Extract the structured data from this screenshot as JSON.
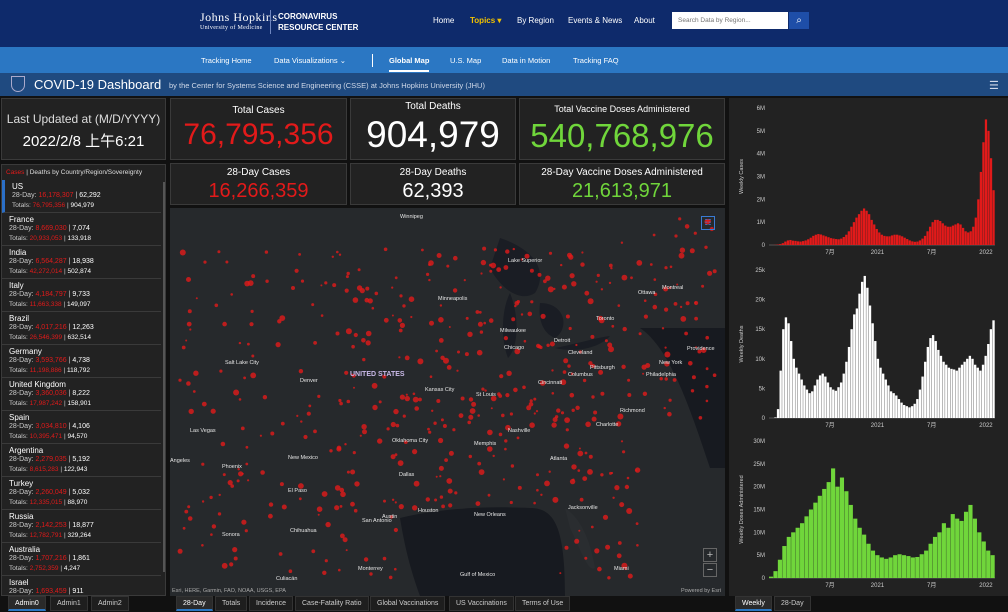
{
  "header": {
    "logo_top": "Johns Hopkins",
    "logo_bottom": "University of Medicine",
    "logo_title_1": "CORONAVIRUS",
    "logo_title_2": "RESOURCE CENTER",
    "nav": [
      "Home",
      "Topics ▾",
      "By Region",
      "Events & News",
      "About"
    ],
    "search_placeholder": "Search Data by Region..."
  },
  "subnav": [
    "Tracking Home",
    "Data Visualizations ⌄",
    "Global Map",
    "U.S. Map",
    "Data in Motion",
    "Tracking FAQ"
  ],
  "dashboard": {
    "title": "COVID-19 Dashboard",
    "subtitle": "by the Center for Systems Science and Engineering (CSSE) at Johns Hopkins University (JHU)"
  },
  "updated": {
    "label": "Last Updated at (M/D/YYYY)",
    "value": "2022/2/8 上午6:21"
  },
  "totals": {
    "cases_label": "Total Cases",
    "cases": "76,795,356",
    "deaths_label": "Total Deaths",
    "deaths": "904,979",
    "vaccine_label": "Total Vaccine Doses Administered",
    "vaccine": "540,768,976",
    "cases28_label": "28-Day Cases",
    "cases28": "16,266,359",
    "deaths28_label": "28-Day Deaths",
    "deaths28": "62,393",
    "vaccine28_label": "28-Day Vaccine Doses Administered",
    "vaccine28": "21,613,971"
  },
  "list": {
    "head_cases": "Cases",
    "head_rest": " | Deaths by Country/Region/Sovereignty",
    "rows": [
      {
        "name": "US",
        "d28c": "16,178,307",
        "d28d": "62,292",
        "tc": "76,795,356",
        "td": "904,979"
      },
      {
        "name": "France",
        "d28c": "8,669,030",
        "d28d": "7,074",
        "tc": "20,933,053",
        "td": "133,918"
      },
      {
        "name": "India",
        "d28c": "6,564,287",
        "d28d": "18,938",
        "tc": "42,272,014",
        "td": "502,874"
      },
      {
        "name": "Italy",
        "d28c": "4,184,797",
        "d28d": "9,733",
        "tc": "11,663,338",
        "td": "149,097"
      },
      {
        "name": "Brazil",
        "d28c": "4,017,216",
        "d28d": "12,263",
        "tc": "26,546,399",
        "td": "632,514"
      },
      {
        "name": "Germany",
        "d28c": "3,593,766",
        "d28d": "4,738",
        "tc": "11,198,886",
        "td": "118,792"
      },
      {
        "name": "United Kingdom",
        "d28c": "3,360,036",
        "d28d": "8,222",
        "tc": "17,987,242",
        "td": "158,901"
      },
      {
        "name": "Spain",
        "d28c": "3,034,810",
        "d28d": "4,106",
        "tc": "10,395,471",
        "td": "94,570"
      },
      {
        "name": "Argentina",
        "d28c": "2,279,035",
        "d28d": "5,192",
        "tc": "8,615,283",
        "td": "122,943"
      },
      {
        "name": "Turkey",
        "d28c": "2,260,049",
        "d28d": "5,032",
        "tc": "12,335,015",
        "td": "88,970"
      },
      {
        "name": "Russia",
        "d28c": "2,142,253",
        "d28d": "18,877",
        "tc": "12,782,791",
        "td": "329,264"
      },
      {
        "name": "Australia",
        "d28c": "1,707,216",
        "d28d": "1,861",
        "tc": "2,752,359",
        "td": "4,247"
      },
      {
        "name": "Israel",
        "d28c": "1,693,459",
        "d28d": "911",
        "tc": "",
        "td": ""
      }
    ],
    "l_28": "28-Day: ",
    "l_tot": "Totals: "
  },
  "map": {
    "labels": [
      "Winnipeg",
      "Lake Superior",
      "Ottawa",
      "Montreal",
      "Toronto",
      "Minneapolis",
      "Milwaukee",
      "Detroit",
      "Chicago",
      "Cleveland",
      "Pittsburgh",
      "New York",
      "Philadelphia",
      "Providence",
      "Salt Lake City",
      "Denver",
      "UNITED STATES",
      "Kansas City",
      "St Louis",
      "Columbus",
      "Cincinnati",
      "Richmond",
      "Las Vegas",
      "Oklahoma City",
      "Nashville",
      "Charlotte",
      "Phoenix",
      "Memphis",
      "Atlanta",
      "New Mexico",
      "Dallas",
      "El Paso",
      "Chihuahua",
      "Austin",
      "San Antonio",
      "Houston",
      "New Orleans",
      "Jacksonville",
      "Monterrey",
      "Gulf of Mexico",
      "Miami",
      "Sonora",
      "Culiacán",
      "Angeles"
    ],
    "attribution": "Esri, HERE, Garmin, FAO, NOAA, USGS, EPA",
    "powered": "Powered by Esri"
  },
  "bottom_tabs": {
    "left": [
      "Admin0",
      "Admin1",
      "Admin2"
    ],
    "mid": [
      "28-Day",
      "Totals",
      "Incidence",
      "Case-Fatality Ratio",
      "Global Vaccinations",
      "US Vaccinations",
      "Terms of Use"
    ],
    "right": [
      "Weekly",
      "28-Day"
    ]
  },
  "colors": {
    "cases": "#e21a1a",
    "deaths": "#ffffff",
    "vaccine": "#70d63b",
    "accent": "#2b77c3"
  },
  "chart_data": [
    {
      "type": "bar",
      "ylabel": "Weekly Cases",
      "yticks": [
        "0",
        "1M",
        "2M",
        "3M",
        "4M",
        "5M",
        "6M"
      ],
      "ylim": [
        0,
        6000000
      ],
      "xticks": [
        "7月",
        "2021",
        "7月",
        "2022"
      ],
      "values": [
        0,
        2000,
        8000,
        20000,
        40000,
        80000,
        150000,
        200000,
        220000,
        190000,
        180000,
        160000,
        150000,
        170000,
        200000,
        250000,
        320000,
        400000,
        450000,
        480000,
        460000,
        420000,
        380000,
        340000,
        300000,
        280000,
        260000,
        250000,
        280000,
        350000,
        450000,
        600000,
        800000,
        1000000,
        1200000,
        1350000,
        1500000,
        1600000,
        1500000,
        1350000,
        1100000,
        900000,
        700000,
        550000,
        450000,
        400000,
        380000,
        380000,
        420000,
        450000,
        450000,
        420000,
        380000,
        320000,
        260000,
        200000,
        160000,
        140000,
        150000,
        200000,
        280000,
        400000,
        600000,
        800000,
        1000000,
        1100000,
        1100000,
        1050000,
        950000,
        850000,
        800000,
        800000,
        850000,
        900000,
        950000,
        900000,
        750000,
        600000,
        550000,
        600000,
        800000,
        1200000,
        2000000,
        3200000,
        4500000,
        5500000,
        5000000,
        3800000,
        2400000
      ]
    },
    {
      "type": "bar",
      "ylabel": "Weekly Deaths",
      "yticks": [
        "0",
        "5k",
        "10k",
        "15k",
        "20k",
        "25k"
      ],
      "ylim": [
        0,
        25000
      ],
      "xticks": [
        "7月",
        "2021",
        "7月",
        "2022"
      ],
      "values": [
        0,
        0,
        100,
        1500,
        8000,
        15000,
        17000,
        16000,
        13000,
        10000,
        8500,
        7500,
        6500,
        5500,
        4800,
        4200,
        4500,
        5500,
        6500,
        7200,
        7500,
        7000,
        6000,
        5200,
        4800,
        4600,
        5200,
        6000,
        7500,
        9500,
        12000,
        15000,
        17500,
        18500,
        21000,
        23000,
        24000,
        22000,
        19000,
        16000,
        13000,
        10000,
        8500,
        7500,
        6500,
        5500,
        4500,
        4200,
        3800,
        3200,
        2600,
        2200,
        2000,
        1800,
        2000,
        2400,
        3200,
        4800,
        7000,
        9500,
        12000,
        13500,
        14000,
        13000,
        11500,
        10500,
        9500,
        9000,
        8500,
        8300,
        8200,
        8000,
        8500,
        9000,
        9500,
        10000,
        10500,
        10000,
        9000,
        8500,
        8000,
        9000,
        10500,
        12500,
        15000,
        16500
      ]
    },
    {
      "type": "bar",
      "ylabel": "Weekly Doses Administered",
      "yticks": [
        "0",
        "5M",
        "10M",
        "15M",
        "20M",
        "25M",
        "30M"
      ],
      "ylim": [
        0,
        30000000
      ],
      "xticks": [
        "7月",
        "2021",
        "7月",
        "2022"
      ],
      "values": [
        300000,
        1500000,
        4000000,
        7000000,
        9000000,
        10000000,
        11000000,
        12000000,
        13500000,
        15000000,
        16500000,
        18000000,
        19500000,
        21000000,
        24000000,
        20000000,
        22000000,
        19000000,
        16000000,
        13000000,
        11000000,
        9500000,
        7500000,
        6000000,
        5000000,
        4500000,
        4200000,
        4500000,
        5000000,
        5200000,
        5000000,
        4800000,
        4500000,
        4600000,
        5200000,
        6000000,
        7500000,
        9000000,
        10000000,
        12000000,
        11000000,
        14000000,
        13000000,
        12500000,
        14500000,
        16000000,
        13000000,
        10000000,
        8000000,
        6000000,
        5000000
      ]
    }
  ]
}
